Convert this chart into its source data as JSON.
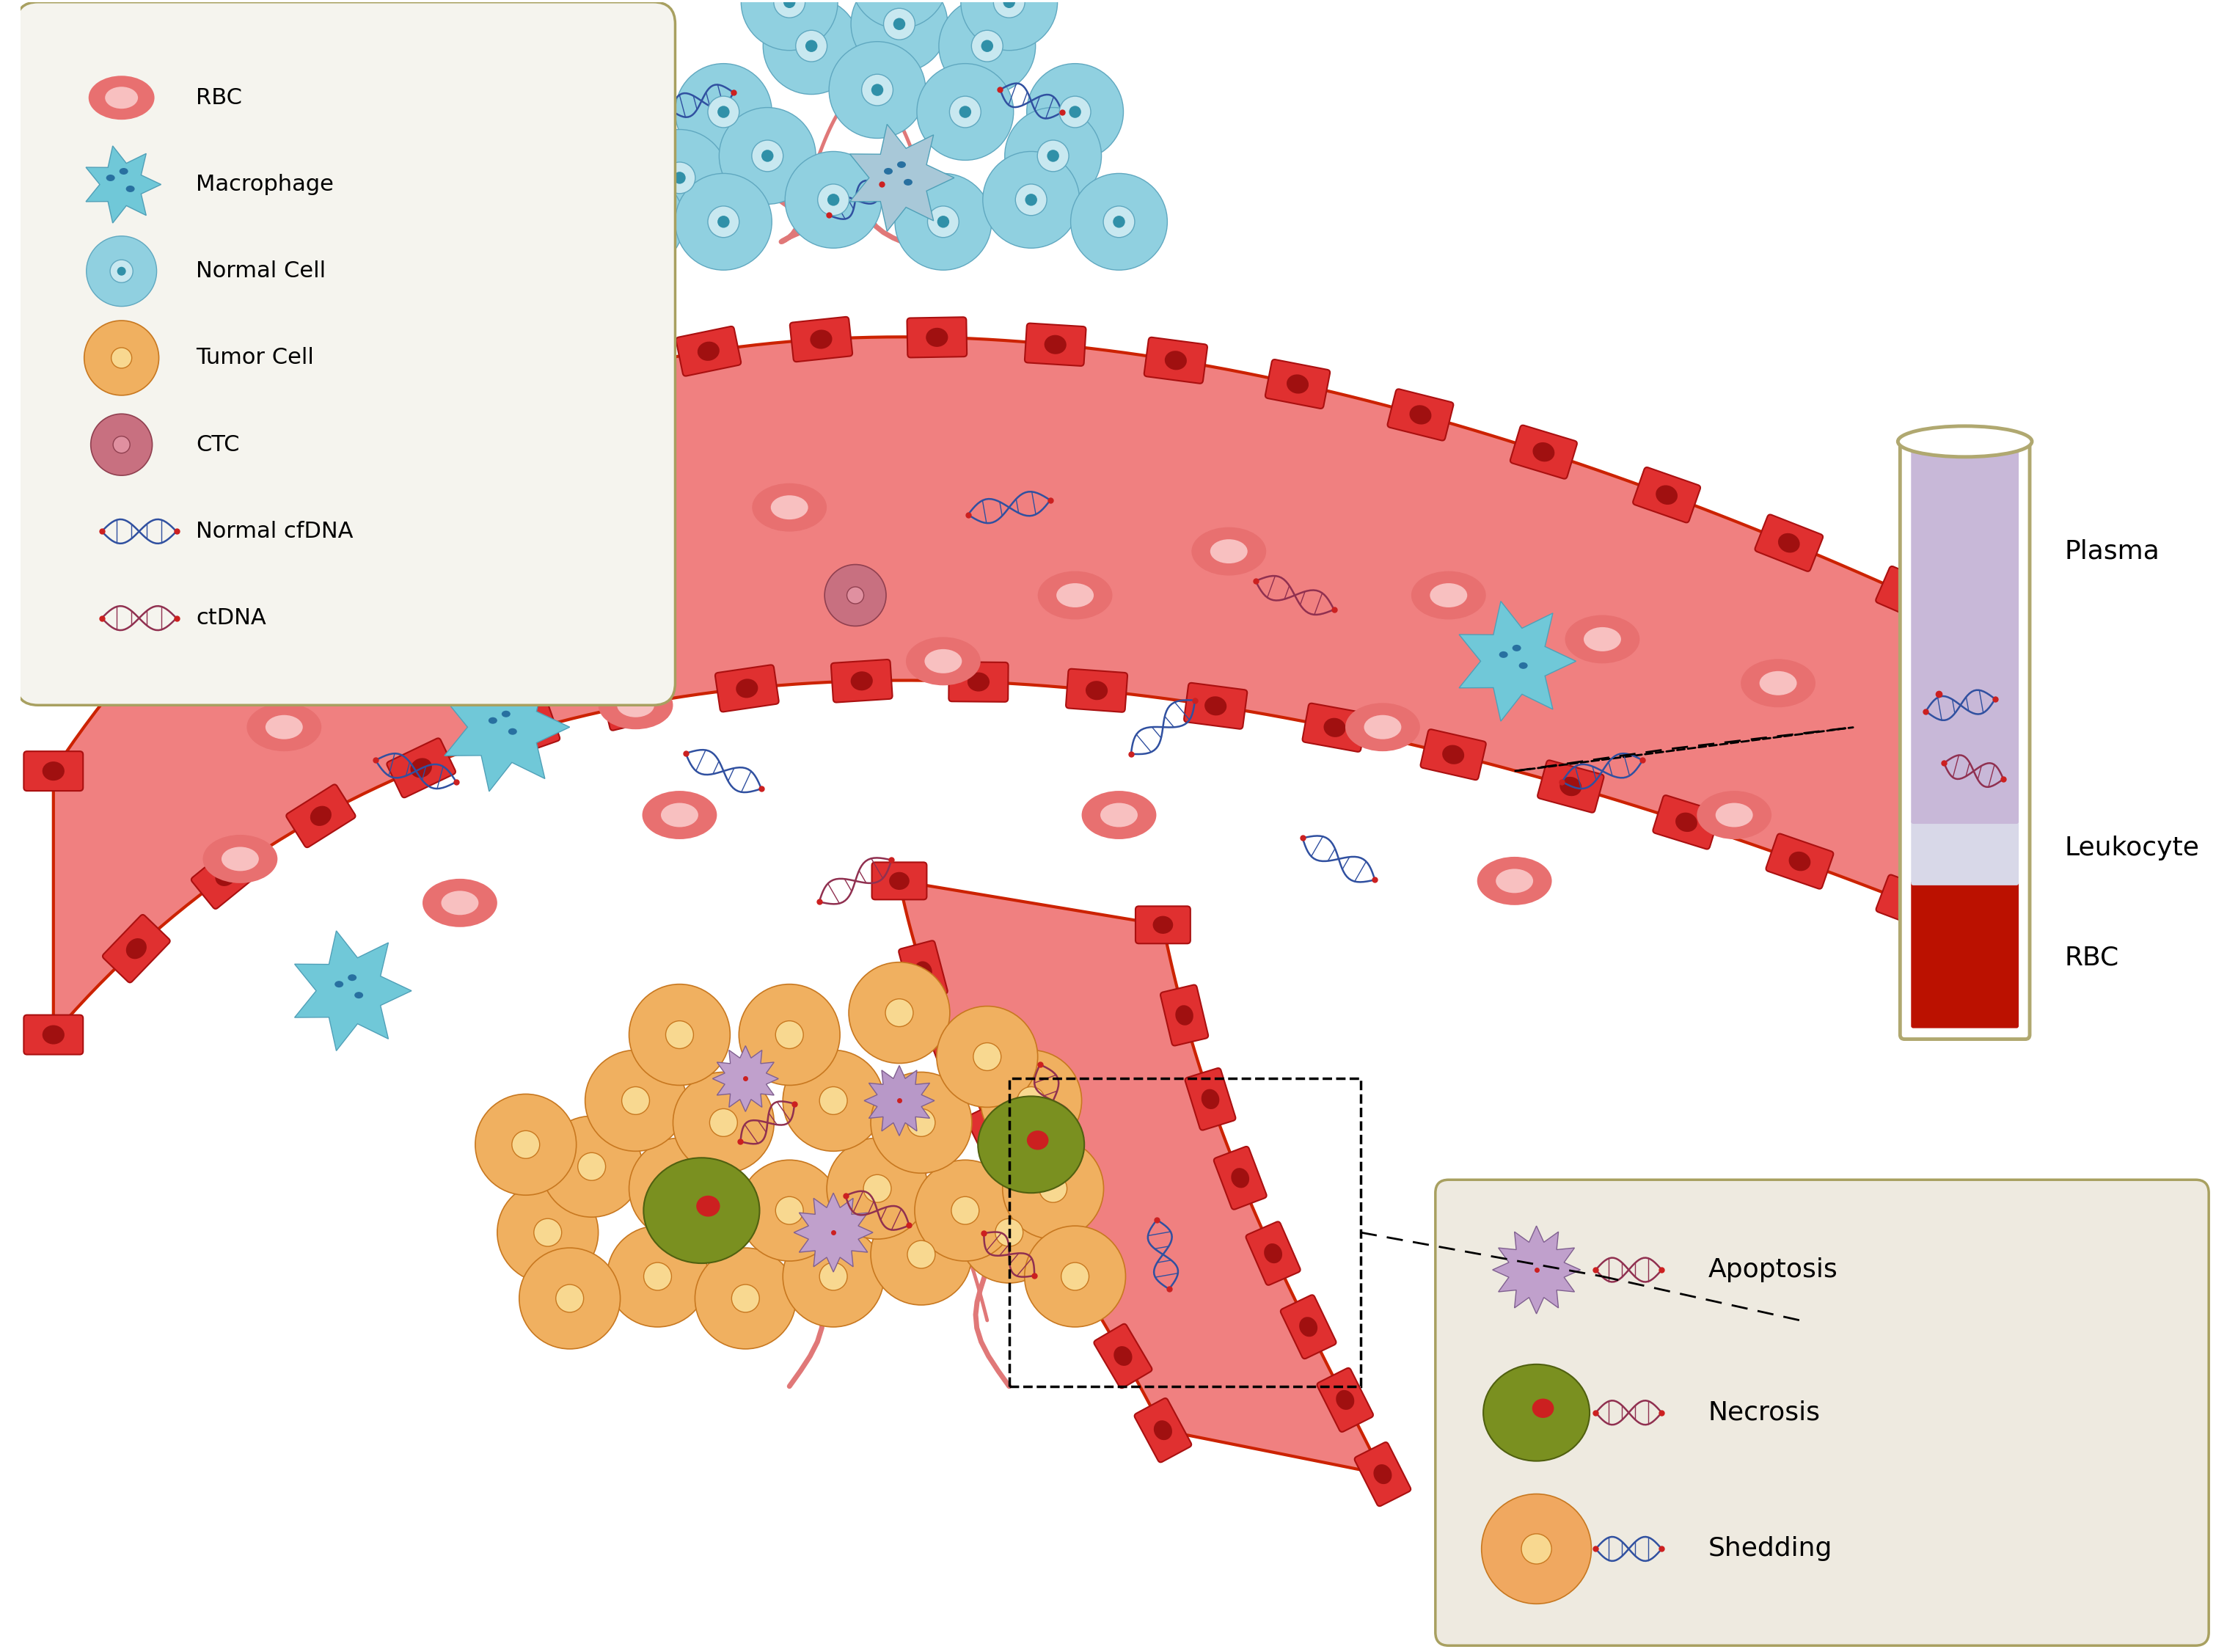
{
  "bg_color": "#ffffff",
  "vessel_fill": "#F08080",
  "vessel_border": "#CC2200",
  "vessel_cell_fill": "#E03030",
  "vessel_cell_border": "#AA1010",
  "rbc_color": "#E87070",
  "rbc_inner": "#F8C0C0",
  "macrophage_color": "#70C8D8",
  "normal_cell_color": "#90D0E0",
  "normal_cell_border": "#60A8C0",
  "tumor_cell_color": "#F0B060",
  "tumor_cell_border": "#D08030",
  "ctc_color": "#C87080",
  "dna_normal_color": "#3050A0",
  "dna_tumor_color": "#903050",
  "legend_bg": "#F5F4EE",
  "legend_border": "#A8A060",
  "legend_items": [
    "RBC",
    "Macrophage",
    "Normal Cell",
    "Tumor Cell",
    "CTC",
    "Normal cfDNA",
    "ctDNA"
  ],
  "tube_border_color": "#B0A870",
  "tube_plasma_color": "#C8B8D8",
  "tube_leuko_color": "#D8D8E8",
  "tube_rbc_color": "#BB1100",
  "tube_labels": [
    "Plasma",
    "Leukocyte",
    "RBC"
  ],
  "bottom_box_bg": "#EEEAE0",
  "bottom_box_border": "#A8A060",
  "bottom_items": [
    "Apoptosis",
    "Necrosis",
    "Shedding"
  ],
  "apoptosis_color": "#C0A0CC",
  "necrosis_color": "#7A9020",
  "shedding_color": "#F0A860",
  "fig_width": 30.51,
  "fig_height": 22.52
}
